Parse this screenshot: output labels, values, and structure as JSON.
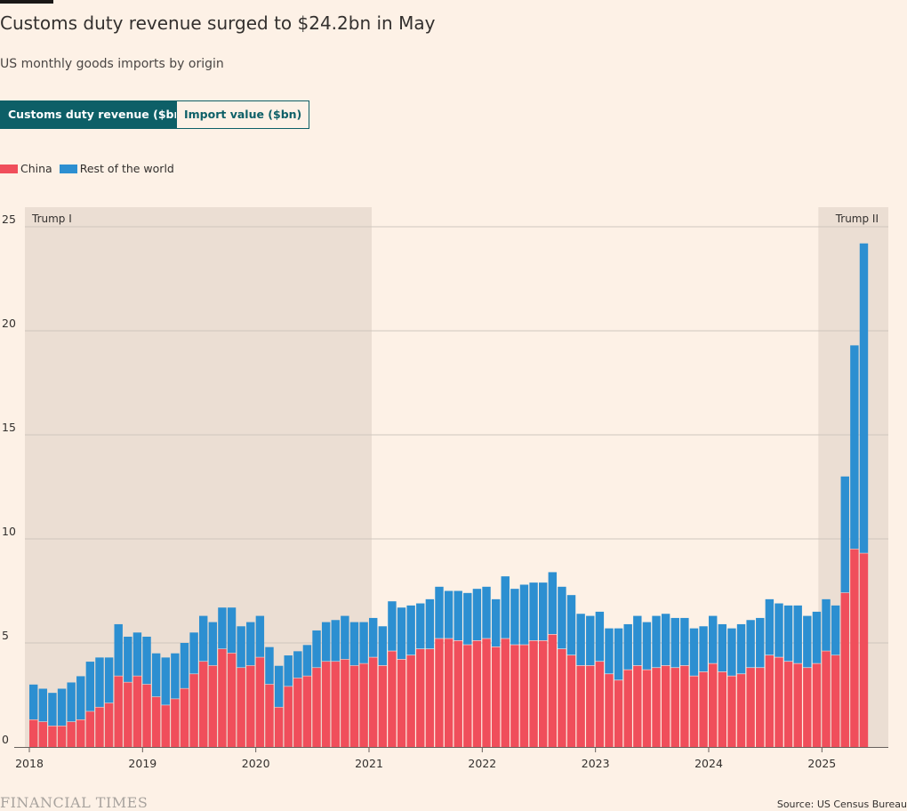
{
  "header": {
    "title": "Customs duty revenue surged to $24.2bn in May",
    "subtitle": "US monthly goods imports by origin"
  },
  "toggles": {
    "active_label": "Customs duty revenue ($bn)",
    "inactive_label": "Import value ($bn)"
  },
  "legend": {
    "china_label": "China",
    "row_label": "Rest of the world"
  },
  "colors": {
    "china": "#f04e5b",
    "rest_of_world": "#2c8fd1",
    "shade": "#ebded3",
    "toggle_active": "#0d5f67"
  },
  "footer": {
    "brand": "FINANCIAL TIMES",
    "source": "Source: US Census Bureau"
  },
  "chart_data": {
    "type": "bar",
    "stacked": true,
    "start": "2018-01",
    "x_ticks": [
      "2018",
      "2019",
      "2020",
      "2021",
      "2022",
      "2023",
      "2024",
      "2025"
    ],
    "y_ticks": [
      "0",
      "5",
      "10",
      "15",
      "20",
      "25"
    ],
    "ylim": [
      0,
      26
    ],
    "grid": true,
    "periods": [
      {
        "label": "Trump I",
        "from": "2018-01",
        "to": "2021-01"
      },
      {
        "label": "Trump II",
        "from": "2025-01",
        "to": "2025-05"
      }
    ],
    "series": [
      {
        "name": "China",
        "values": [
          1.3,
          1.2,
          1.0,
          1.0,
          1.2,
          1.3,
          1.7,
          1.9,
          2.1,
          3.4,
          3.1,
          3.4,
          3.0,
          2.4,
          2.0,
          2.3,
          2.8,
          3.5,
          4.1,
          3.9,
          4.7,
          4.5,
          3.8,
          3.9,
          4.3,
          3.0,
          1.9,
          2.9,
          3.3,
          3.4,
          3.8,
          4.1,
          4.1,
          4.2,
          3.9,
          4.0,
          4.3,
          3.9,
          4.6,
          4.2,
          4.4,
          4.7,
          4.7,
          5.2,
          5.2,
          5.1,
          4.9,
          5.1,
          5.2,
          4.8,
          5.2,
          4.9,
          4.9,
          5.1,
          5.1,
          5.4,
          4.7,
          4.4,
          3.9,
          3.9,
          4.1,
          3.5,
          3.2,
          3.7,
          3.9,
          3.7,
          3.8,
          3.9,
          3.8,
          3.9,
          3.4,
          3.6,
          4.0,
          3.6,
          3.4,
          3.5,
          3.8,
          3.8,
          4.4,
          4.3,
          4.1,
          4.0,
          3.8,
          4.0,
          4.6,
          4.4,
          7.4,
          9.5,
          9.3
        ]
      },
      {
        "name": "Rest of the world",
        "values": [
          1.7,
          1.6,
          1.6,
          1.8,
          1.9,
          2.1,
          2.4,
          2.4,
          2.2,
          2.5,
          2.2,
          2.1,
          2.3,
          2.1,
          2.3,
          2.2,
          2.2,
          2.0,
          2.2,
          2.1,
          2.0,
          2.2,
          2.0,
          2.1,
          2.0,
          1.8,
          2.0,
          1.5,
          1.3,
          1.5,
          1.8,
          1.9,
          2.0,
          2.1,
          2.1,
          2.0,
          1.9,
          1.9,
          2.4,
          2.5,
          2.4,
          2.2,
          2.4,
          2.5,
          2.3,
          2.4,
          2.5,
          2.5,
          2.5,
          2.3,
          3.0,
          2.7,
          2.9,
          2.8,
          2.8,
          3.0,
          3.0,
          2.9,
          2.5,
          2.4,
          2.4,
          2.2,
          2.5,
          2.2,
          2.4,
          2.3,
          2.5,
          2.5,
          2.4,
          2.3,
          2.3,
          2.2,
          2.3,
          2.3,
          2.3,
          2.4,
          2.3,
          2.4,
          2.7,
          2.6,
          2.7,
          2.8,
          2.5,
          2.5,
          2.5,
          2.4,
          5.6,
          9.8,
          14.9
        ]
      }
    ]
  }
}
